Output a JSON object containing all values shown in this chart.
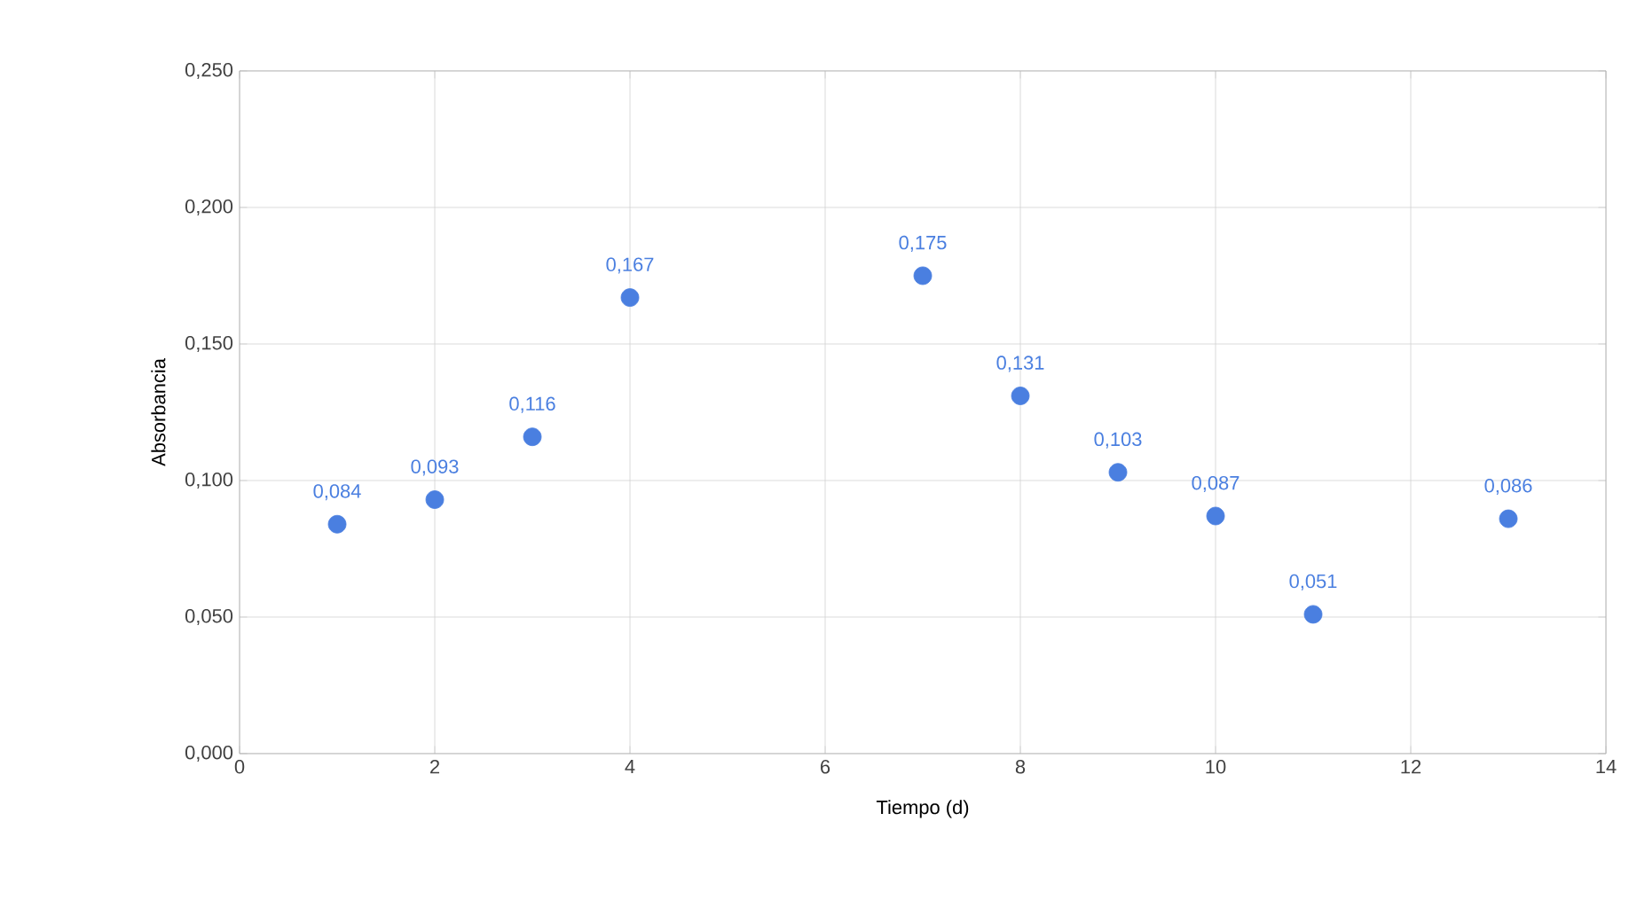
{
  "chart_data": {
    "type": "scatter",
    "xlabel": "Tiempo (d)",
    "ylabel": "Absorbancia",
    "x": [
      1,
      2,
      3,
      4,
      7,
      8,
      9,
      10,
      11,
      13
    ],
    "values": [
      0.084,
      0.093,
      0.116,
      0.167,
      0.175,
      0.131,
      0.103,
      0.087,
      0.051,
      0.086
    ],
    "value_labels": [
      "0,084",
      "0,093",
      "0,116",
      "0,167",
      "0,175",
      "0,131",
      "0,103",
      "0,087",
      "0,051",
      "0,086"
    ],
    "color": "#4a7fe0",
    "marker": "circle",
    "grid": true,
    "xlim": [
      0,
      14
    ],
    "xticks": [
      0,
      2,
      4,
      6,
      8,
      10,
      12,
      14
    ],
    "ylim": [
      0,
      0.25
    ],
    "yticks": [
      {
        "value": 0,
        "label": "0,000"
      },
      {
        "value": 0.05,
        "label": "0,050"
      },
      {
        "value": 0.1,
        "label": "0,100"
      },
      {
        "value": 0.15,
        "label": "0,150"
      },
      {
        "value": 0.2,
        "label": "0,200"
      },
      {
        "value": 0.25,
        "label": "0,250"
      }
    ]
  }
}
